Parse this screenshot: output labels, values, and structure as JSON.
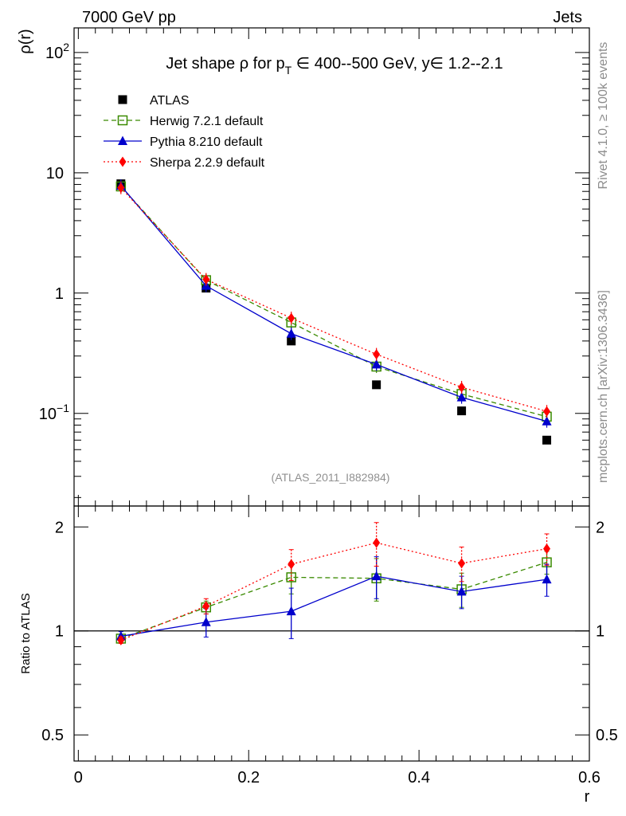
{
  "header": {
    "left": "7000 GeV pp",
    "right": "Jets",
    "side_top": "Rivet 4.1.0, ≥ 100k events",
    "side_bottom": "mcplots.cern.ch [arXiv:1306.3436]"
  },
  "chart_data": {
    "type": "line",
    "title_parts": [
      "Jet shape ",
      "ρ",
      " for p",
      "T",
      " ∈ 400--500 GeV, y∈ 1.2--2.1"
    ],
    "analysis_label": "(ATLAS_2011_I882984)",
    "xlabel": "r",
    "ylabel_top": "ρ(r)",
    "ylabel_bottom": "Ratio to ATLAS",
    "xlim": [
      -0.005,
      0.6
    ],
    "ylim_top_log": [
      0.017,
      160
    ],
    "ylim_bottom_log": [
      0.42,
      2.3
    ],
    "x_ticks": [
      {
        "value": 0,
        "label": "0"
      },
      {
        "value": 0.2,
        "label": "0.2"
      },
      {
        "value": 0.4,
        "label": "0.4"
      },
      {
        "value": 0.6,
        "label": "0.6"
      }
    ],
    "y_ticks_top": [
      {
        "value": 100,
        "base": "10",
        "exp": "2"
      },
      {
        "value": 10,
        "base": "10",
        "exp": ""
      },
      {
        "value": 1,
        "base": "1",
        "exp": ""
      },
      {
        "value": 0.1,
        "base": "10",
        "exp": "−1"
      }
    ],
    "y_ticks_bottom": [
      {
        "value": 2,
        "label": "2"
      },
      {
        "value": 1,
        "label": "1"
      },
      {
        "value": 0.5,
        "label": "0.5"
      }
    ],
    "x": [
      0.05,
      0.15,
      0.25,
      0.35,
      0.45,
      0.55
    ],
    "series": [
      {
        "name": "ATLAS",
        "key": "atlas",
        "color": "#000000",
        "marker": "square-filled",
        "values": [
          8.1,
          1.1,
          0.4,
          0.173,
          0.105,
          0.06
        ]
      },
      {
        "name": "Herwig 7.2.1 default",
        "key": "herwig",
        "color": "#3a8a00",
        "marker": "square-open",
        "dash": "6,4",
        "values": [
          7.7,
          1.28,
          0.57,
          0.245,
          0.145,
          0.094
        ],
        "ratio": [
          0.95,
          1.17,
          1.43,
          1.42,
          1.32,
          1.58
        ],
        "ratio_err": [
          0.02,
          0.05,
          0.15,
          0.2,
          0.15,
          0.12
        ]
      },
      {
        "name": "Pythia 8.210 default",
        "key": "pythia",
        "color": "#0000cc",
        "marker": "triangle-filled",
        "values": [
          7.8,
          1.15,
          0.46,
          0.255,
          0.136,
          0.086
        ],
        "ratio": [
          0.965,
          1.06,
          1.14,
          1.44,
          1.3,
          1.41
        ],
        "ratio_err": [
          0.03,
          0.1,
          0.19,
          0.2,
          0.14,
          0.15
        ]
      },
      {
        "name": "Sherpa 2.2.9 default",
        "key": "sherpa",
        "color": "#ff0000",
        "marker": "diamond-filled",
        "dash": "2,3",
        "values": [
          7.5,
          1.3,
          0.62,
          0.31,
          0.165,
          0.104
        ],
        "ratio": [
          0.94,
          1.18,
          1.56,
          1.8,
          1.57,
          1.73
        ],
        "ratio_err": [
          0.02,
          0.06,
          0.16,
          0.26,
          0.18,
          0.18
        ]
      }
    ],
    "reference_line": 1
  }
}
